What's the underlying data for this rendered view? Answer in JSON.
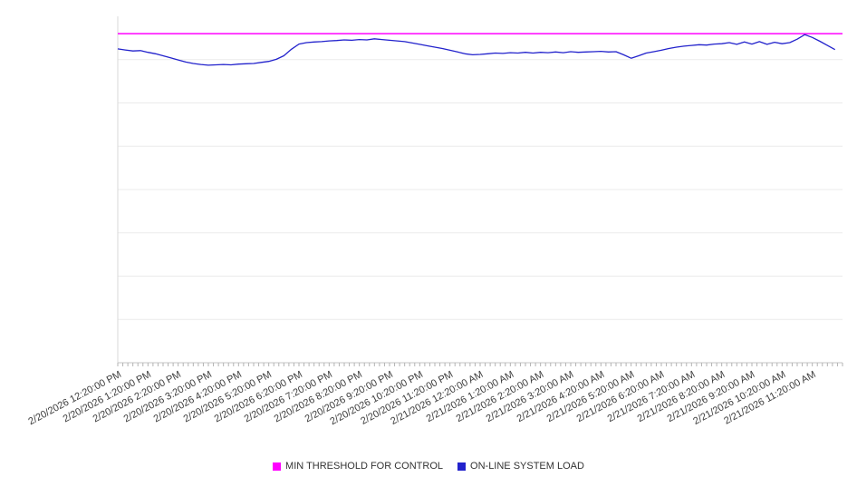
{
  "legend": [
    {
      "label": "MIN THRESHOLD FOR CONTROL",
      "color": "#ff00ff"
    },
    {
      "label": "ON-LINE SYSTEM LOAD",
      "color": "#2222cc"
    }
  ],
  "chart_data": {
    "type": "line",
    "title": "",
    "xlabel": "",
    "ylabel": "",
    "ylim": [
      0,
      100
    ],
    "x_hours_span": 24,
    "grid": "horizontal",
    "legend_position": "bottom",
    "categories": [
      "2/20/2026 12:20:00 PM",
      "2/20/2026 1:20:00 PM",
      "2/20/2026 2:20:00 PM",
      "2/20/2026 3:20:00 PM",
      "2/20/2026 4:20:00 PM",
      "2/20/2026 5:20:00 PM",
      "2/20/2026 6:20:00 PM",
      "2/20/2026 7:20:00 PM",
      "2/20/2026 8:20:00 PM",
      "2/20/2026 9:20:00 PM",
      "2/20/2026 10:20:00 PM",
      "2/20/2026 11:20:00 PM",
      "2/21/2026 12:20:00 AM",
      "2/21/2026 1:20:00 AM",
      "2/21/2026 2:20:00 AM",
      "2/21/2026 3:20:00 AM",
      "2/21/2026 4:20:00 AM",
      "2/21/2026 5:20:00 AM",
      "2/21/2026 6:20:00 AM",
      "2/21/2026 7:20:00 AM",
      "2/21/2026 8:20:00 AM",
      "2/21/2026 9:20:00 AM",
      "2/21/2026 10:20:00 AM",
      "2/21/2026 11:20:00 AM"
    ],
    "series": [
      {
        "name": "MIN THRESHOLD FOR CONTROL",
        "type": "threshold",
        "color": "#ff00ff",
        "value": 95
      },
      {
        "name": "ON-LINE SYSTEM LOAD",
        "type": "line",
        "color": "#2222cc",
        "step_hours": 0.25,
        "values": [
          90.6,
          90.3,
          90.0,
          90.1,
          89.6,
          89.2,
          88.6,
          88.0,
          87.4,
          86.8,
          86.4,
          86.1,
          85.9,
          86.0,
          86.1,
          86.0,
          86.2,
          86.3,
          86.4,
          86.7,
          87.0,
          87.6,
          88.6,
          90.5,
          92.0,
          92.4,
          92.6,
          92.7,
          92.9,
          93.0,
          93.2,
          93.1,
          93.3,
          93.2,
          93.5,
          93.3,
          93.1,
          92.9,
          92.7,
          92.3,
          91.9,
          91.5,
          91.1,
          90.7,
          90.2,
          89.7,
          89.2,
          88.9,
          89.0,
          89.2,
          89.4,
          89.3,
          89.5,
          89.4,
          89.6,
          89.4,
          89.6,
          89.5,
          89.7,
          89.5,
          89.8,
          89.6,
          89.7,
          89.8,
          89.9,
          89.7,
          89.8,
          88.9,
          87.9,
          88.6,
          89.4,
          89.8,
          90.2,
          90.7,
          91.1,
          91.4,
          91.6,
          91.8,
          91.7,
          92.0,
          92.1,
          92.4,
          91.9,
          92.6,
          92.0,
          92.7,
          91.9,
          92.5,
          92.1,
          92.4,
          93.4,
          94.7,
          93.9,
          92.8,
          91.6,
          90.4
        ]
      }
    ]
  }
}
